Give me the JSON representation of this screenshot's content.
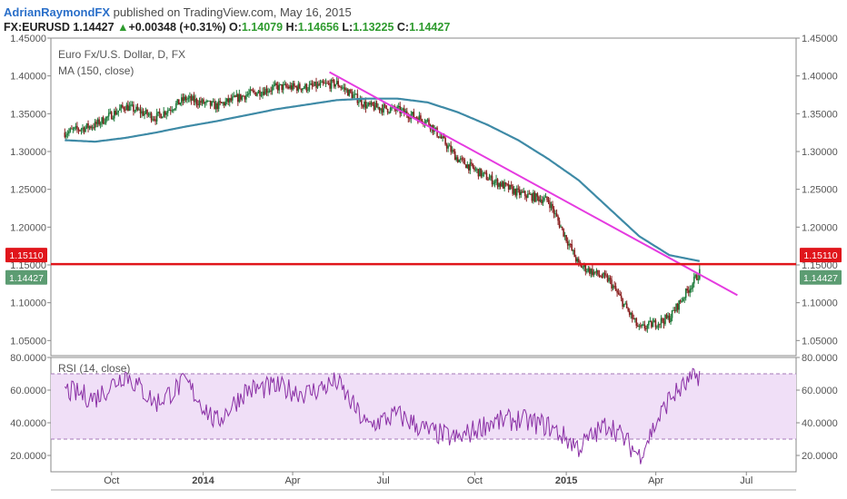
{
  "header": {
    "author": "AdrianRaymondFX",
    "published_text": "published on TradingView.com, May 16, 2015",
    "symbol": "FX:EURUSD",
    "last": "1.14427",
    "change_arrow": "▲",
    "change": "+0.00348 (+0.31%)",
    "o_label": "O:",
    "o_value": "1.14079",
    "h_label": "H:",
    "h_value": "1.14656",
    "l_label": "L:",
    "l_value": "1.13225",
    "c_label": "C:",
    "c_value": "1.14427"
  },
  "colors": {
    "price_up": "#1e7b3b",
    "price_down": "#8a2020",
    "ma": "#3e8aa6",
    "trendline": "#e53be0",
    "hline": "#e0151b",
    "rsi": "#8a2fa5",
    "rsi_band": "#f0dff7",
    "last_badge": "#5c9c72"
  },
  "chart_data": [
    {
      "type": "line",
      "title": "Euro Fx/U.S. Dollar, D, FX",
      "indicator_label": "MA (150, close)",
      "ylim": [
        1.03,
        1.45
      ],
      "yticks": [
        "1.45000",
        "1.40000",
        "1.35000",
        "1.30000",
        "1.25000",
        "1.20000",
        "1.15000",
        "1.10000",
        "1.05000"
      ],
      "xticks": [
        "Oct",
        "2014",
        "Apr",
        "Jul",
        "Oct",
        "2015",
        "Apr",
        "Jul"
      ],
      "x": [
        "2013-08",
        "2013-09",
        "2013-10",
        "2013-11",
        "2013-12",
        "2014-01",
        "2014-02",
        "2014-03",
        "2014-04",
        "2014-05",
        "2014-06",
        "2014-07",
        "2014-08",
        "2014-09",
        "2014-10",
        "2014-11",
        "2014-12",
        "2015-01",
        "2015-02",
        "2015-03",
        "2015-04",
        "2015-05"
      ],
      "series": [
        {
          "name": "EURUSD",
          "values": [
            1.325,
            1.335,
            1.36,
            1.345,
            1.37,
            1.36,
            1.375,
            1.385,
            1.385,
            1.39,
            1.36,
            1.355,
            1.34,
            1.29,
            1.265,
            1.245,
            1.235,
            1.15,
            1.13,
            1.065,
            1.08,
            1.14
          ]
        },
        {
          "name": "MA (150, close)",
          "values": [
            1.315,
            1.313,
            1.318,
            1.325,
            1.333,
            1.34,
            1.348,
            1.356,
            1.362,
            1.368,
            1.37,
            1.37,
            1.365,
            1.352,
            1.335,
            1.315,
            1.29,
            1.262,
            1.225,
            1.188,
            1.163,
            1.155
          ]
        }
      ],
      "trendline": {
        "from": [
          "2014-05-08",
          1.405
        ],
        "to": [
          "2015-06-22",
          1.11
        ]
      },
      "horizontal_line": 1.1511,
      "price_labels": [
        {
          "value": 1.1511,
          "text": "1.15110"
        },
        {
          "value": 1.14427,
          "text": "1.14427"
        }
      ]
    },
    {
      "type": "line",
      "title": "RSI (14, close)",
      "ylim": [
        10,
        80
      ],
      "yticks": [
        "80.0000",
        "60.0000",
        "40.0000",
        "20.0000"
      ],
      "band": [
        30,
        70
      ],
      "x": [
        "2013-08",
        "2013-09",
        "2013-10",
        "2013-11",
        "2013-12",
        "2014-01",
        "2014-02",
        "2014-03",
        "2014-04",
        "2014-05",
        "2014-06",
        "2014-07",
        "2014-08",
        "2014-09",
        "2014-10",
        "2014-11",
        "2014-12",
        "2015-01",
        "2015-02",
        "2015-03",
        "2015-04",
        "2015-05"
      ],
      "series": [
        {
          "name": "RSI (14, close)",
          "values": [
            60,
            55,
            70,
            52,
            65,
            40,
            60,
            62,
            58,
            65,
            38,
            45,
            35,
            30,
            40,
            42,
            38,
            25,
            40,
            20,
            55,
            70
          ]
        }
      ]
    }
  ]
}
